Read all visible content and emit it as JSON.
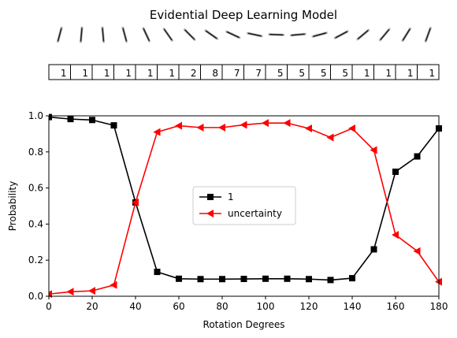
{
  "chart_data": {
    "type": "line",
    "title": "Evidential Deep Learning Model",
    "xlabel": "Rotation Degrees",
    "ylabel": "Probability",
    "xlim": [
      0,
      180
    ],
    "ylim": [
      0,
      1
    ],
    "x_ticks": [
      0,
      20,
      40,
      60,
      80,
      100,
      120,
      140,
      160,
      180
    ],
    "y_ticks": [
      0.0,
      0.2,
      0.4,
      0.6,
      0.8,
      1.0
    ],
    "x": [
      0,
      10,
      20,
      30,
      40,
      50,
      60,
      70,
      80,
      90,
      100,
      110,
      120,
      130,
      140,
      150,
      160,
      170,
      180
    ],
    "predicted_classes": [
      "1",
      "1",
      "1",
      "1",
      "1",
      "1",
      "2",
      "8",
      "7",
      "7",
      "5",
      "5",
      "5",
      "5",
      "1",
      "1",
      "1",
      "1"
    ],
    "digit_rotations_deg": [
      15,
      5,
      -5,
      -15,
      -25,
      -35,
      -45,
      -55,
      -65,
      -78,
      -88,
      -95,
      -105,
      -118,
      -130,
      -140,
      -148,
      -160
    ],
    "legend_position": "center",
    "grid": false,
    "series": [
      {
        "name": "1",
        "color": "#000000",
        "marker": "square",
        "values": [
          0.993,
          0.982,
          0.977,
          0.947,
          0.52,
          0.135,
          0.097,
          0.095,
          0.095,
          0.096,
          0.097,
          0.097,
          0.095,
          0.09,
          0.1,
          0.26,
          0.69,
          0.775,
          0.93
        ]
      },
      {
        "name": "uncertainty",
        "color": "#ff0000",
        "marker": "triangle-left",
        "values": [
          0.012,
          0.025,
          0.03,
          0.062,
          0.52,
          0.91,
          0.945,
          0.935,
          0.935,
          0.95,
          0.96,
          0.96,
          0.93,
          0.88,
          0.93,
          0.81,
          0.34,
          0.25,
          0.08
        ]
      }
    ]
  }
}
